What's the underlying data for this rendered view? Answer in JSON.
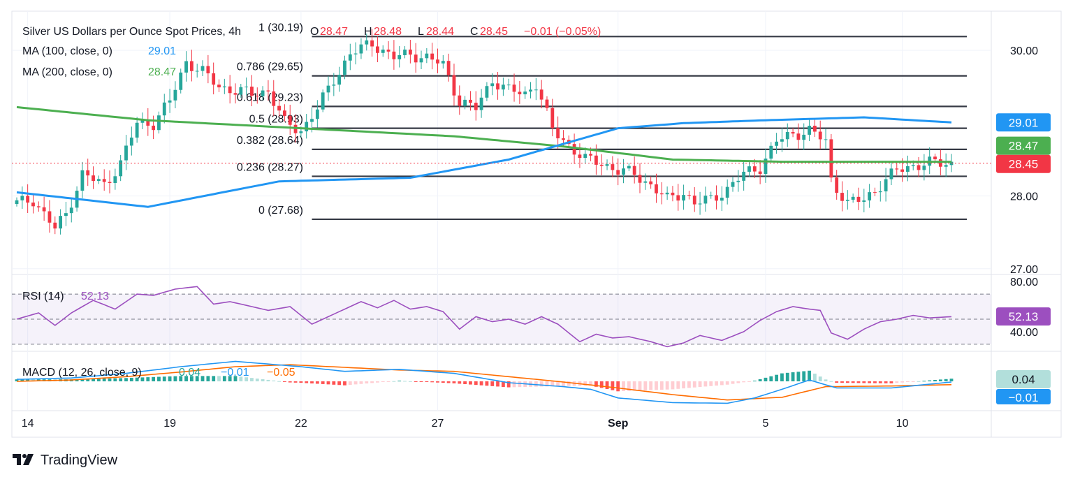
{
  "colors": {
    "up": "#26a69a",
    "down": "#f23645",
    "ma100": "#2196f3",
    "ma200": "#4caf50",
    "rsi": "#9c4fbf",
    "macd": "#2196f3",
    "signal": "#ff6d00",
    "fib": "#363a45",
    "price": "#f23645"
  },
  "header": {
    "title": "Silver US Dollars per Ounce Spot Prices, 4h",
    "ohlc": [
      {
        "k": "O",
        "v": "28.47"
      },
      {
        "k": "H",
        "v": "28.48"
      },
      {
        "k": "L",
        "v": "28.44"
      },
      {
        "k": "C",
        "v": "28.45"
      }
    ],
    "change": "−0.01 (−0.05%)",
    "ma100_label": "MA (100, close, 0)",
    "ma100_value": "29.01",
    "ma200_label": "MA (200, close, 0)",
    "ma200_value": "28.47"
  },
  "chart_data": [
    {
      "type": "candlestick",
      "title": "Silver US Dollars per Ounce Spot Prices, 4h",
      "ylim": [
        26.95,
        30.5
      ],
      "y_ticks": [
        "30.00",
        "28.00",
        "27.00"
      ],
      "y_tick_values": [
        30.0,
        28.0,
        27.0
      ],
      "x_tick_labels": [
        "14",
        "19",
        "22",
        "27",
        "Sep",
        "5",
        "10"
      ],
      "x_tick_index": [
        2,
        28,
        52,
        77,
        110,
        137,
        162
      ],
      "n_bars": 172,
      "candle_anchors_idx": [
        0,
        3,
        7,
        9,
        12,
        16,
        19,
        22,
        25,
        28,
        31,
        34,
        37,
        40,
        43,
        46,
        49,
        52,
        55,
        58,
        61,
        65,
        69,
        72,
        75,
        78,
        81,
        84,
        87,
        90,
        93,
        95,
        98,
        101,
        104,
        107,
        110,
        113,
        116,
        119,
        122,
        124,
        127,
        130,
        133,
        136,
        139,
        142,
        145,
        148,
        149,
        152,
        155,
        158,
        161,
        164,
        167,
        170
      ],
      "candle_anchors_close": [
        27.9,
        27.95,
        27.55,
        27.75,
        28.3,
        28.15,
        28.45,
        29.0,
        29.0,
        29.3,
        29.85,
        29.7,
        29.5,
        29.45,
        29.4,
        29.45,
        29.0,
        28.9,
        29.2,
        29.6,
        29.95,
        30.1,
        29.9,
        29.95,
        29.9,
        29.8,
        29.3,
        29.2,
        29.6,
        29.45,
        29.4,
        29.55,
        28.9,
        28.7,
        28.5,
        28.45,
        28.35,
        28.3,
        28.15,
        27.95,
        28.05,
        27.9,
        27.95,
        28.1,
        28.3,
        28.4,
        28.75,
        28.85,
        28.9,
        28.75,
        28.22,
        27.9,
        27.95,
        28.15,
        28.35,
        28.42,
        28.45,
        28.45
      ],
      "ma100_anchors_idx": [
        0,
        24,
        48,
        72,
        90,
        110,
        122,
        137,
        155,
        171
      ],
      "ma100_values": [
        28.05,
        27.85,
        28.2,
        28.25,
        28.5,
        28.93,
        29.0,
        29.04,
        29.08,
        29.01
      ],
      "ma200_anchors_idx": [
        0,
        24,
        52,
        80,
        100,
        120,
        140,
        171
      ],
      "ma200_values": [
        29.22,
        29.04,
        28.93,
        28.82,
        28.68,
        28.5,
        28.47,
        28.47
      ],
      "last_price": 28.45,
      "last_price_label": "28.45",
      "ma100_label": "29.01",
      "ma200_label": "28.47",
      "fib_start_idx": 54,
      "fib_levels": [
        {
          "label": "1 (30.19)",
          "value": 30.19
        },
        {
          "label": "0.786 (29.65)",
          "value": 29.65
        },
        {
          "label": "0.618 (29.23)",
          "value": 29.23
        },
        {
          "label": "0.5 (28.93)",
          "value": 28.93
        },
        {
          "label": "0.382 (28.64)",
          "value": 28.64
        },
        {
          "label": "0.236 (28.27)",
          "value": 28.27
        },
        {
          "label": "0 (27.68)",
          "value": 27.68
        }
      ]
    },
    {
      "type": "line",
      "title": "RSI (14)",
      "value_label": "52.13",
      "ylim": [
        26,
        84
      ],
      "y_ticks": [
        "80.00",
        "40.00"
      ],
      "y_tick_values": [
        80,
        40
      ],
      "bands": [
        70,
        50,
        30
      ],
      "anchors_idx": [
        0,
        4,
        7,
        10,
        14,
        18,
        22,
        25,
        29,
        33,
        36,
        39,
        42,
        46,
        50,
        54,
        57,
        60,
        63,
        66,
        69,
        72,
        75,
        78,
        81,
        84,
        87,
        90,
        93,
        96,
        99,
        103,
        106,
        109,
        112,
        116,
        119,
        122,
        125,
        129,
        133,
        136,
        139,
        142,
        145,
        147,
        149,
        152,
        155,
        158,
        161,
        164,
        167,
        171
      ],
      "values": [
        50,
        55,
        45,
        55,
        65,
        58,
        70,
        69,
        74,
        76,
        62,
        64,
        61,
        57,
        60,
        46,
        52,
        58,
        64,
        59,
        65,
        58,
        60,
        56,
        42,
        52,
        48,
        50,
        46,
        52,
        46,
        32,
        38,
        35,
        36,
        32,
        28,
        31,
        37,
        33,
        40,
        49,
        56,
        60,
        58,
        57,
        39,
        34,
        42,
        48,
        50,
        53,
        51,
        52
      ]
    },
    {
      "type": "macd",
      "title": "MACD (12, 26, close, 9)",
      "macd_label": "0.04",
      "line_label": "−0.01",
      "signal_label": "−0.05",
      "ylim": [
        -0.42,
        0.42
      ],
      "macd_anchors_idx": [
        0,
        10,
        20,
        30,
        40,
        52,
        60,
        70,
        80,
        90,
        100,
        105,
        110,
        120,
        130,
        135,
        140,
        145,
        150,
        160,
        171
      ],
      "macd_values": [
        0.03,
        0.05,
        0.12,
        0.22,
        0.3,
        0.22,
        0.15,
        0.18,
        0.12,
        -0.02,
        -0.08,
        -0.12,
        -0.25,
        -0.32,
        -0.33,
        -0.25,
        -0.12,
        0.02,
        -0.1,
        -0.1,
        -0.01
      ],
      "signal_anchors_idx": [
        0,
        10,
        20,
        30,
        40,
        50,
        60,
        70,
        80,
        90,
        100,
        110,
        120,
        130,
        140,
        148,
        160,
        171
      ],
      "signal_values": [
        0.0,
        0.02,
        0.07,
        0.14,
        0.22,
        0.25,
        0.21,
        0.17,
        0.15,
        0.07,
        -0.01,
        -0.1,
        -0.2,
        -0.28,
        -0.24,
        -0.08,
        -0.07,
        -0.05
      ]
    }
  ],
  "footer": {
    "brand": "TradingView"
  }
}
